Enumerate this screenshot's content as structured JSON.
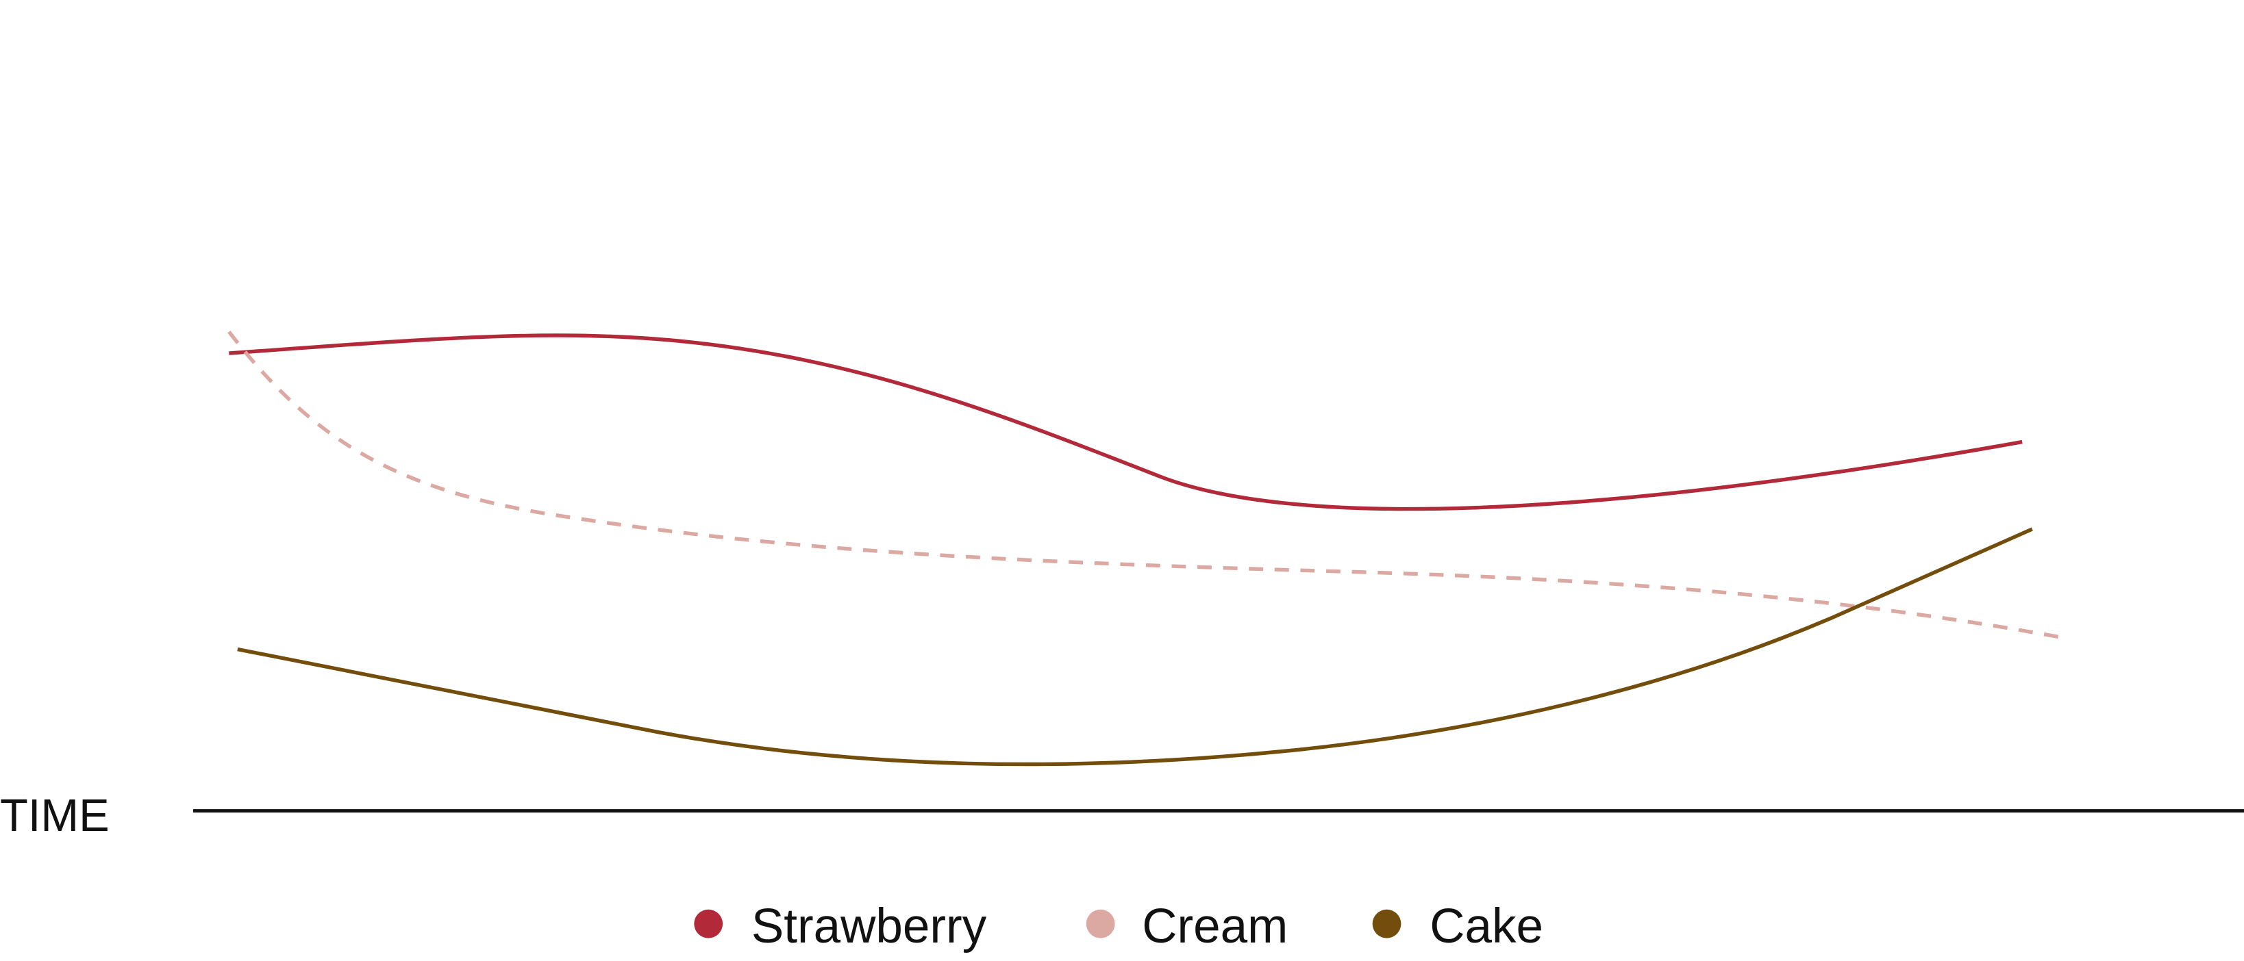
{
  "axis_label": "TIME",
  "legend": [
    {
      "name": "Strawberry",
      "color": "#b22a3a"
    },
    {
      "name": "Cream",
      "color": "#dba8a2"
    },
    {
      "name": "Cake",
      "color": "#724d0c"
    }
  ]
}
